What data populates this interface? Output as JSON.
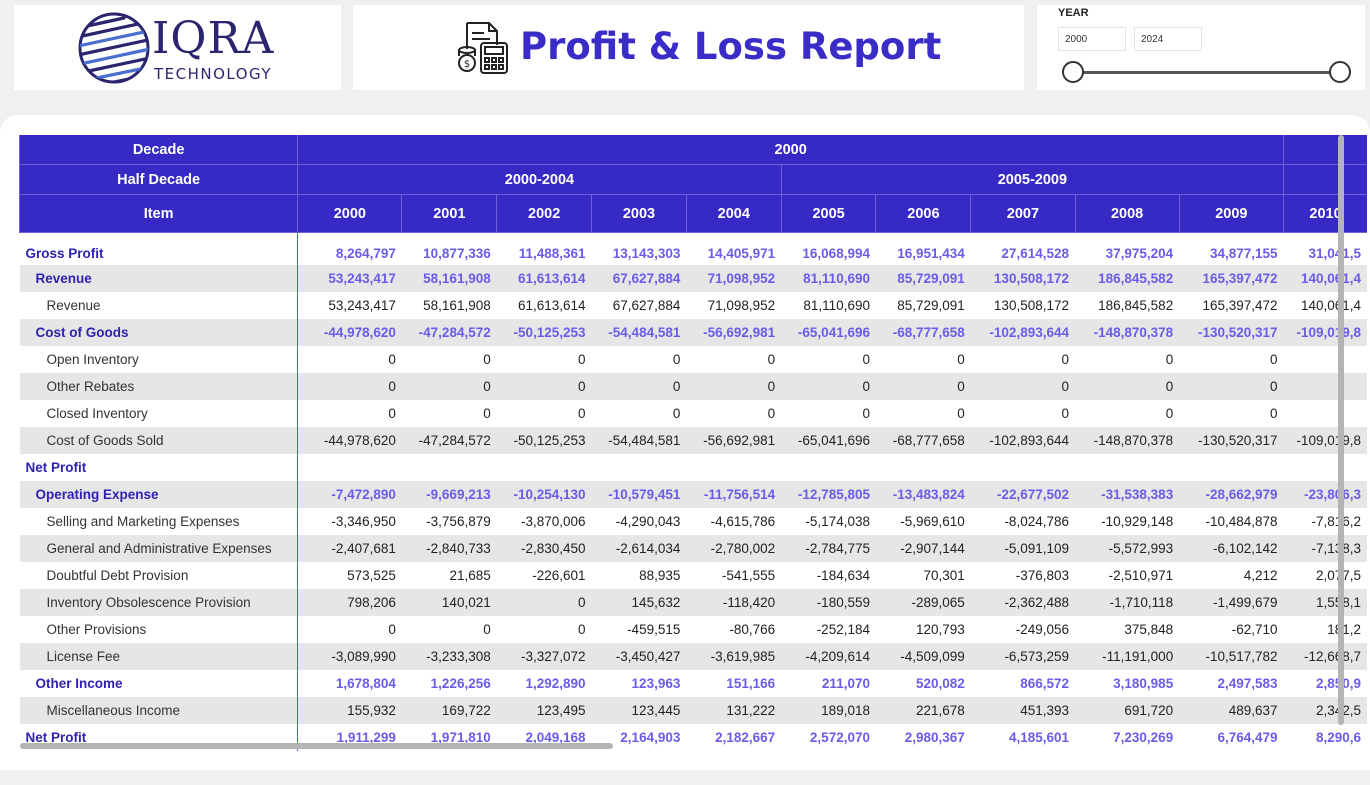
{
  "brand": {
    "name": "IQRA",
    "sub": "TECHNOLOGY"
  },
  "report": {
    "title": "Profit & Loss Report",
    "icon": "finance-report-icon"
  },
  "slicer": {
    "label": "YEAR",
    "from": "2000",
    "to": "2024"
  },
  "table": {
    "header": {
      "decade_label": "Decade",
      "decade_value": "2000",
      "half_label": "Half Decade",
      "half_values": [
        "2000-2004",
        "2005-2009"
      ],
      "item_label": "Item",
      "years": [
        "2000",
        "2001",
        "2002",
        "2003",
        "2004",
        "2005",
        "2006",
        "2007",
        "2008",
        "2009",
        "2010"
      ]
    },
    "rows": [
      {
        "label": "Gross Profit",
        "level": 1,
        "shade": false,
        "values": [
          "8,264,797",
          "10,877,336",
          "11,488,361",
          "13,143,303",
          "14,405,971",
          "16,068,994",
          "16,951,434",
          "27,614,528",
          "37,975,204",
          "34,877,155",
          "31,041,5"
        ]
      },
      {
        "label": "Revenue",
        "level": 2,
        "shade": true,
        "values": [
          "53,243,417",
          "58,161,908",
          "61,613,614",
          "67,627,884",
          "71,098,952",
          "81,110,690",
          "85,729,091",
          "130,508,172",
          "186,845,582",
          "165,397,472",
          "140,061,4"
        ]
      },
      {
        "label": "Revenue",
        "level": 3,
        "shade": false,
        "values": [
          "53,243,417",
          "58,161,908",
          "61,613,614",
          "67,627,884",
          "71,098,952",
          "81,110,690",
          "85,729,091",
          "130,508,172",
          "186,845,582",
          "165,397,472",
          "140,061,4"
        ]
      },
      {
        "label": "Cost of Goods",
        "level": 2,
        "shade": true,
        "values": [
          "-44,978,620",
          "-47,284,572",
          "-50,125,253",
          "-54,484,581",
          "-56,692,981",
          "-65,041,696",
          "-68,777,658",
          "-102,893,644",
          "-148,870,378",
          "-130,520,317",
          "-109,019,8"
        ]
      },
      {
        "label": "Open Inventory",
        "level": 3,
        "shade": false,
        "values": [
          "0",
          "0",
          "0",
          "0",
          "0",
          "0",
          "0",
          "0",
          "0",
          "0",
          ""
        ]
      },
      {
        "label": "Other Rebates",
        "level": 3,
        "shade": true,
        "values": [
          "0",
          "0",
          "0",
          "0",
          "0",
          "0",
          "0",
          "0",
          "0",
          "0",
          ""
        ]
      },
      {
        "label": "Closed Inventory",
        "level": 3,
        "shade": false,
        "values": [
          "0",
          "0",
          "0",
          "0",
          "0",
          "0",
          "0",
          "0",
          "0",
          "0",
          ""
        ]
      },
      {
        "label": "Cost of Goods Sold",
        "level": 3,
        "shade": true,
        "values": [
          "-44,978,620",
          "-47,284,572",
          "-50,125,253",
          "-54,484,581",
          "-56,692,981",
          "-65,041,696",
          "-68,777,658",
          "-102,893,644",
          "-148,870,378",
          "-130,520,317",
          "-109,019,8"
        ]
      },
      {
        "label": "Net Profit",
        "level": 1,
        "shade": false,
        "values": [
          "",
          "",
          "",
          "",
          "",
          "",
          "",
          "",
          "",
          "",
          ""
        ]
      },
      {
        "label": "Operating Expense",
        "level": 2,
        "shade": true,
        "values": [
          "-7,472,890",
          "-9,669,213",
          "-10,254,130",
          "-10,579,451",
          "-11,756,514",
          "-12,785,805",
          "-13,483,824",
          "-22,677,502",
          "-31,538,383",
          "-28,662,979",
          "-23,806,3"
        ]
      },
      {
        "label": "Selling and Marketing Expenses",
        "level": 3,
        "shade": false,
        "values": [
          "-3,346,950",
          "-3,756,879",
          "-3,870,006",
          "-4,290,043",
          "-4,615,786",
          "-5,174,038",
          "-5,969,610",
          "-8,024,786",
          "-10,929,148",
          "-10,484,878",
          "-7,816,2"
        ]
      },
      {
        "label": "General and Administrative Expenses",
        "level": 3,
        "shade": true,
        "values": [
          "-2,407,681",
          "-2,840,733",
          "-2,830,450",
          "-2,614,034",
          "-2,780,002",
          "-2,784,775",
          "-2,907,144",
          "-5,091,109",
          "-5,572,993",
          "-6,102,142",
          "-7,138,3"
        ]
      },
      {
        "label": "Doubtful Debt Provision",
        "level": 3,
        "shade": false,
        "values": [
          "573,525",
          "21,685",
          "-226,601",
          "88,935",
          "-541,555",
          "-184,634",
          "70,301",
          "-376,803",
          "-2,510,971",
          "4,212",
          "2,077,5"
        ]
      },
      {
        "label": "Inventory Obsolescence Provision",
        "level": 3,
        "shade": true,
        "values": [
          "798,206",
          "140,021",
          "0",
          "145,632",
          "-118,420",
          "-180,559",
          "-289,065",
          "-2,362,488",
          "-1,710,118",
          "-1,499,679",
          "1,558,1"
        ]
      },
      {
        "label": "Other Provisions",
        "level": 3,
        "shade": false,
        "values": [
          "0",
          "0",
          "0",
          "-459,515",
          "-80,766",
          "-252,184",
          "120,793",
          "-249,056",
          "375,848",
          "-62,710",
          "181,2"
        ]
      },
      {
        "label": "License Fee",
        "level": 3,
        "shade": true,
        "values": [
          "-3,089,990",
          "-3,233,308",
          "-3,327,072",
          "-3,450,427",
          "-3,619,985",
          "-4,209,614",
          "-4,509,099",
          "-6,573,259",
          "-11,191,000",
          "-10,517,782",
          "-12,668,7"
        ]
      },
      {
        "label": "Other Income",
        "level": 2,
        "shade": false,
        "values": [
          "1,678,804",
          "1,226,256",
          "1,292,890",
          "123,963",
          "151,166",
          "211,070",
          "520,082",
          "866,572",
          "3,180,985",
          "2,497,583",
          "2,850,9"
        ]
      },
      {
        "label": "Miscellaneous Income",
        "level": 3,
        "shade": true,
        "values": [
          "155,932",
          "169,722",
          "123,495",
          "123,445",
          "131,222",
          "189,018",
          "221,678",
          "451,393",
          "691,720",
          "489,637",
          "2,342,5"
        ]
      },
      {
        "label": "Net Profit",
        "level": 1,
        "shade": false,
        "values": [
          "1,911,299",
          "1,971,810",
          "2,049,168",
          "2,164,903",
          "2,182,667",
          "2,572,070",
          "2,980,367",
          "4,185,601",
          "7,230,269",
          "6,764,479",
          "8,290,6"
        ]
      }
    ]
  }
}
